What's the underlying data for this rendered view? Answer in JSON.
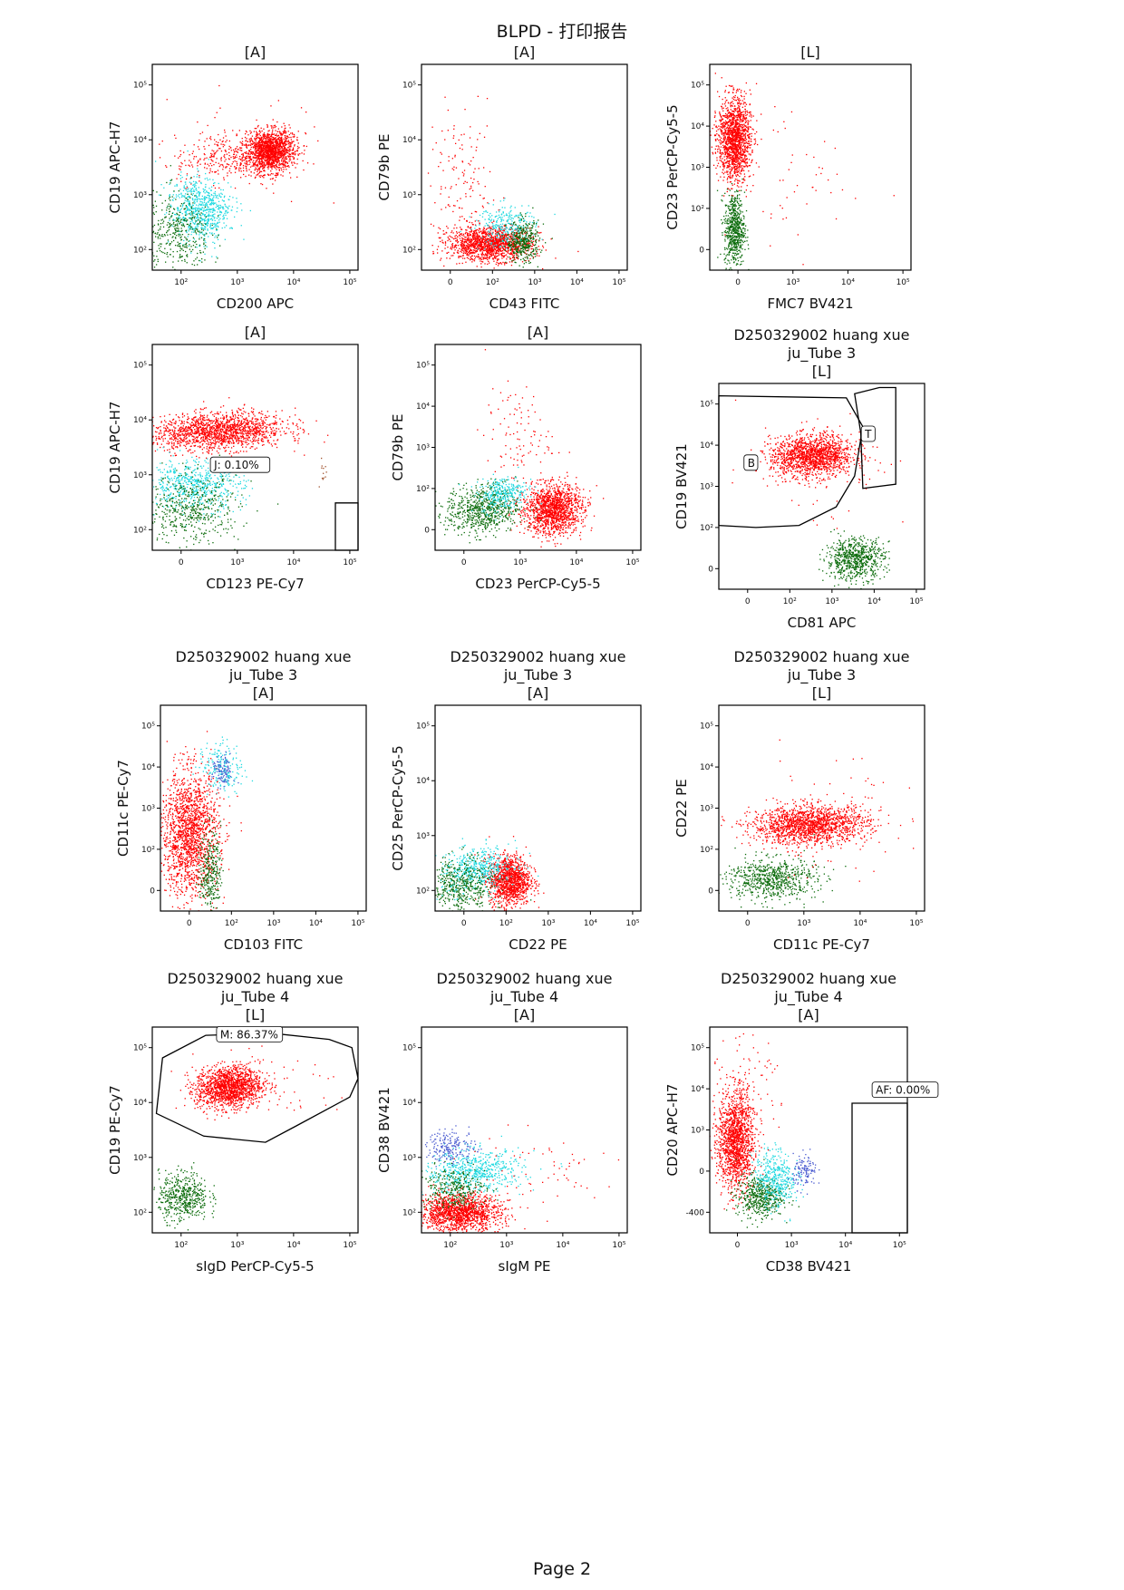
{
  "report": {
    "title": "BLPD - 打印报告",
    "page": "Page 2"
  },
  "colors": {
    "red": "#ff0000",
    "cyan": "#1fd9e0",
    "green": "#0a6b0a",
    "blue": "#4a5bd0",
    "brown": "#a0522d",
    "gate": "#000000"
  },
  "chart_data": [
    {
      "type": "scatter",
      "header": [
        "[A]"
      ],
      "xlabel": "CD200 APC",
      "ylabel": "CD19 APC-H7",
      "xticks": [
        "10²",
        "10³",
        "10⁴",
        "10⁵"
      ],
      "yticks": [
        "10²",
        "10³",
        "10⁴",
        "10⁵"
      ],
      "gates": [],
      "populations": [
        {
          "color": "red",
          "n": 1500,
          "cx": 0.57,
          "cy": 0.58,
          "sx": 0.06,
          "sy": 0.05,
          "rot": 0.25
        },
        {
          "color": "red",
          "n": 300,
          "cx": 0.35,
          "cy": 0.55,
          "sx": 0.12,
          "sy": 0.06,
          "rot": 0.1
        },
        {
          "color": "cyan",
          "n": 700,
          "cx": 0.23,
          "cy": 0.3,
          "sx": 0.07,
          "sy": 0.08,
          "rot": 0.3
        },
        {
          "color": "green",
          "n": 400,
          "cx": 0.12,
          "cy": 0.18,
          "sx": 0.08,
          "sy": 0.1,
          "rot": 0.0
        },
        {
          "color": "red",
          "n": 40,
          "cx": 0.5,
          "cy": 0.6,
          "sx": 0.25,
          "sy": 0.18,
          "rot": 0.0
        }
      ]
    },
    {
      "type": "scatter",
      "header": [
        "[A]"
      ],
      "xlabel": "CD43 FITC",
      "ylabel": "CD79b PE",
      "xticks": [
        "0",
        "10²",
        "10³",
        "10⁴",
        "10⁵"
      ],
      "yticks": [
        "10²",
        "10³",
        "10⁴",
        "10⁵"
      ],
      "gates": [],
      "populations": [
        {
          "color": "red",
          "n": 1500,
          "cx": 0.33,
          "cy": 0.13,
          "sx": 0.1,
          "sy": 0.04,
          "rot": 0.0
        },
        {
          "color": "green",
          "n": 400,
          "cx": 0.49,
          "cy": 0.14,
          "sx": 0.04,
          "sy": 0.05,
          "rot": 0.0
        },
        {
          "color": "cyan",
          "n": 250,
          "cx": 0.4,
          "cy": 0.22,
          "sx": 0.07,
          "sy": 0.05,
          "rot": 0.2
        },
        {
          "color": "red",
          "n": 150,
          "cx": 0.2,
          "cy": 0.4,
          "sx": 0.08,
          "sy": 0.18,
          "rot": 0.0
        }
      ]
    },
    {
      "type": "scatter",
      "header": [
        "[L]"
      ],
      "xlabel": "FMC7 BV421",
      "ylabel": "CD23 PerCP-Cy5-5",
      "xticks": [
        "0",
        "10³",
        "10⁴",
        "10⁵"
      ],
      "yticks": [
        "0",
        "10²",
        "10³",
        "10⁴",
        "10⁵"
      ],
      "gates": [],
      "populations": [
        {
          "color": "red",
          "n": 1500,
          "cx": 0.12,
          "cy": 0.64,
          "sx": 0.04,
          "sy": 0.1,
          "rot": 0.0
        },
        {
          "color": "green",
          "n": 600,
          "cx": 0.12,
          "cy": 0.2,
          "sx": 0.025,
          "sy": 0.09,
          "rot": 0.0
        },
        {
          "color": "red",
          "n": 60,
          "cx": 0.35,
          "cy": 0.45,
          "sx": 0.2,
          "sy": 0.2,
          "rot": 0.0
        }
      ]
    },
    {
      "type": "scatter",
      "header": [
        "[A]"
      ],
      "xlabel": "CD123 PE-Cy7",
      "ylabel": "CD19 APC-H7",
      "xticks": [
        "0",
        "10³",
        "10⁴",
        "10⁵"
      ],
      "yticks": [
        "10²",
        "10³",
        "10⁴",
        "10⁵"
      ],
      "gates": [
        {
          "label": "J: 0.10%",
          "label_x": 0.3,
          "label_y": 0.4
        }
      ],
      "populations": [
        {
          "color": "red",
          "n": 1600,
          "cx": 0.32,
          "cy": 0.58,
          "sx": 0.16,
          "sy": 0.045,
          "rot": 0.05
        },
        {
          "color": "cyan",
          "n": 600,
          "cx": 0.2,
          "cy": 0.32,
          "sx": 0.12,
          "sy": 0.06,
          "rot": 0.0
        },
        {
          "color": "green",
          "n": 500,
          "cx": 0.18,
          "cy": 0.2,
          "sx": 0.12,
          "sy": 0.08,
          "rot": 0.0
        },
        {
          "color": "brown",
          "n": 12,
          "cx": 0.83,
          "cy": 0.38,
          "sx": 0.01,
          "sy": 0.04,
          "rot": 0.0
        }
      ]
    },
    {
      "type": "scatter",
      "header": [
        "[A]"
      ],
      "xlabel": "CD23 PerCP-Cy5-5",
      "ylabel": "CD79b PE",
      "xticks": [
        "0",
        "10³",
        "10⁴",
        "10⁵"
      ],
      "yticks": [
        "0",
        "10²",
        "10³",
        "10⁴",
        "10⁵"
      ],
      "gates": [],
      "populations": [
        {
          "color": "red",
          "n": 1400,
          "cx": 0.57,
          "cy": 0.2,
          "sx": 0.07,
          "sy": 0.06,
          "rot": 0.2
        },
        {
          "color": "green",
          "n": 700,
          "cx": 0.23,
          "cy": 0.2,
          "sx": 0.09,
          "sy": 0.06,
          "rot": 0.1
        },
        {
          "color": "cyan",
          "n": 300,
          "cx": 0.33,
          "cy": 0.28,
          "sx": 0.06,
          "sy": 0.04,
          "rot": 0.2
        },
        {
          "color": "red",
          "n": 100,
          "cx": 0.4,
          "cy": 0.55,
          "sx": 0.08,
          "sy": 0.12,
          "rot": 0.0
        }
      ]
    },
    {
      "type": "scatter",
      "header": [
        "D250329002 huang xue",
        "ju_Tube 3",
        "[L]"
      ],
      "xlabel": "CD81 APC",
      "ylabel": "CD19 BV421",
      "xticks": [
        "0",
        "10²",
        "10³",
        "10⁴",
        "10⁵"
      ],
      "yticks": [
        "0",
        "10²",
        "10³",
        "10⁴",
        "10⁵"
      ],
      "gates": [
        {
          "label": "B",
          "label_x": 0.14,
          "label_y": 0.6
        },
        {
          "label": "T",
          "label_x": 0.71,
          "label_y": 0.74
        }
      ],
      "populations": [
        {
          "color": "red",
          "n": 1500,
          "cx": 0.45,
          "cy": 0.65,
          "sx": 0.1,
          "sy": 0.05,
          "rot": 0.05
        },
        {
          "color": "green",
          "n": 700,
          "cx": 0.66,
          "cy": 0.15,
          "sx": 0.07,
          "sy": 0.05,
          "rot": 0.1
        },
        {
          "color": "red",
          "n": 60,
          "cx": 0.5,
          "cy": 0.6,
          "sx": 0.2,
          "sy": 0.15,
          "rot": 0.0
        }
      ]
    },
    {
      "type": "scatter",
      "header": [
        "D250329002 huang xue",
        "ju_Tube 3",
        "[A]"
      ],
      "xlabel": "CD103 FITC",
      "ylabel": "CD11c PE-Cy7",
      "xticks": [
        "0",
        "10²",
        "10³",
        "10⁴",
        "10⁵"
      ],
      "yticks": [
        "0",
        "10²",
        "10³",
        "10⁴",
        "10⁵"
      ],
      "gates": [],
      "populations": [
        {
          "color": "red",
          "n": 1700,
          "cx": 0.14,
          "cy": 0.38,
          "sx": 0.07,
          "sy": 0.15,
          "rot": 0.0
        },
        {
          "color": "green",
          "n": 300,
          "cx": 0.24,
          "cy": 0.2,
          "sx": 0.025,
          "sy": 0.1,
          "rot": 0.0
        },
        {
          "color": "cyan",
          "n": 200,
          "cx": 0.3,
          "cy": 0.7,
          "sx": 0.05,
          "sy": 0.06,
          "rot": 0.3
        },
        {
          "color": "blue",
          "n": 100,
          "cx": 0.3,
          "cy": 0.68,
          "sx": 0.025,
          "sy": 0.04,
          "rot": 0.0
        }
      ]
    },
    {
      "type": "scatter",
      "header": [
        "D250329002 huang xue",
        "ju_Tube 3",
        "[A]"
      ],
      "xlabel": "CD22 PE",
      "ylabel": "CD25 PerCP-Cy5-5",
      "xticks": [
        "0",
        "10²",
        "10³",
        "10⁴",
        "10⁵"
      ],
      "yticks": [
        "10²",
        "10³",
        "10⁴",
        "10⁵"
      ],
      "gates": [],
      "populations": [
        {
          "color": "red",
          "n": 1200,
          "cx": 0.36,
          "cy": 0.15,
          "sx": 0.05,
          "sy": 0.06,
          "rot": 0.0
        },
        {
          "color": "cyan",
          "n": 500,
          "cx": 0.2,
          "cy": 0.2,
          "sx": 0.09,
          "sy": 0.05,
          "rot": 0.2
        },
        {
          "color": "green",
          "n": 500,
          "cx": 0.12,
          "cy": 0.12,
          "sx": 0.08,
          "sy": 0.07,
          "rot": 0.0
        }
      ]
    },
    {
      "type": "scatter",
      "header": [
        "D250329002 huang xue",
        "ju_Tube 3",
        "[L]"
      ],
      "xlabel": "CD11c PE-Cy7",
      "ylabel": "CD22 PE",
      "xticks": [
        "0",
        "10³",
        "10⁴",
        "10⁵"
      ],
      "yticks": [
        "0",
        "10²",
        "10³",
        "10⁴",
        "10⁵"
      ],
      "gates": [],
      "populations": [
        {
          "color": "red",
          "n": 1600,
          "cx": 0.44,
          "cy": 0.42,
          "sx": 0.14,
          "sy": 0.045,
          "rot": 0.03
        },
        {
          "color": "green",
          "n": 700,
          "cx": 0.25,
          "cy": 0.16,
          "sx": 0.11,
          "sy": 0.05,
          "rot": 0.0
        },
        {
          "color": "red",
          "n": 80,
          "cx": 0.55,
          "cy": 0.45,
          "sx": 0.25,
          "sy": 0.15,
          "rot": 0.0
        }
      ]
    },
    {
      "type": "scatter",
      "header": [
        "D250329002 huang xue",
        "ju_Tube 4",
        "[L]"
      ],
      "xlabel": "sIgD PerCP-Cy5-5",
      "ylabel": "CD19 PE-Cy7",
      "xticks": [
        "10²",
        "10³",
        "10⁴",
        "10⁵"
      ],
      "yticks": [
        "10²",
        "10³",
        "10⁴",
        "10⁵"
      ],
      "gates": [
        {
          "label": "M: 86.37%",
          "label_x": 0.33,
          "label_y": 0.95
        }
      ],
      "populations": [
        {
          "color": "red",
          "n": 1500,
          "cx": 0.37,
          "cy": 0.71,
          "sx": 0.08,
          "sy": 0.05,
          "rot": 0.1
        },
        {
          "color": "green",
          "n": 500,
          "cx": 0.15,
          "cy": 0.18,
          "sx": 0.06,
          "sy": 0.06,
          "rot": 0.0
        },
        {
          "color": "red",
          "n": 60,
          "cx": 0.6,
          "cy": 0.7,
          "sx": 0.2,
          "sy": 0.08,
          "rot": 0.0
        }
      ]
    },
    {
      "type": "scatter",
      "header": [
        "D250329002 huang xue",
        "ju_Tube 4",
        "[A]"
      ],
      "xlabel": "sIgM PE",
      "ylabel": "CD38 BV421",
      "xticks": [
        "10²",
        "10³",
        "10⁴",
        "10⁵"
      ],
      "yticks": [
        "10²",
        "10³",
        "10⁴",
        "10⁵"
      ],
      "gates": [],
      "populations": [
        {
          "color": "red",
          "n": 1500,
          "cx": 0.18,
          "cy": 0.1,
          "sx": 0.1,
          "sy": 0.045,
          "rot": 0.0
        },
        {
          "color": "cyan",
          "n": 600,
          "cx": 0.25,
          "cy": 0.3,
          "sx": 0.12,
          "sy": 0.05,
          "rot": 0.05
        },
        {
          "color": "blue",
          "n": 200,
          "cx": 0.14,
          "cy": 0.42,
          "sx": 0.06,
          "sy": 0.04,
          "rot": 0.0
        },
        {
          "color": "green",
          "n": 300,
          "cx": 0.15,
          "cy": 0.22,
          "sx": 0.08,
          "sy": 0.05,
          "rot": 0.0
        },
        {
          "color": "red",
          "n": 60,
          "cx": 0.55,
          "cy": 0.3,
          "sx": 0.2,
          "sy": 0.1,
          "rot": 0.0
        }
      ]
    },
    {
      "type": "scatter",
      "header": [
        "D250329002 huang xue",
        "ju_Tube 4",
        "[A]"
      ],
      "xlabel": "CD38 BV421",
      "ylabel": "CD20 APC-H7",
      "xticks": [
        "0",
        "10³",
        "10⁴",
        "10⁵"
      ],
      "yticks": [
        "-400",
        "0",
        "10³",
        "10⁴",
        "10⁵"
      ],
      "gates": [
        {
          "label": "AF: 0.00%",
          "label_x": 0.84,
          "label_y": 0.68
        }
      ],
      "populations": [
        {
          "color": "red",
          "n": 1500,
          "cx": 0.13,
          "cy": 0.45,
          "sx": 0.045,
          "sy": 0.12,
          "rot": 0.0
        },
        {
          "color": "green",
          "n": 500,
          "cx": 0.25,
          "cy": 0.18,
          "sx": 0.06,
          "sy": 0.05,
          "rot": 0.0
        },
        {
          "color": "cyan",
          "n": 400,
          "cx": 0.33,
          "cy": 0.27,
          "sx": 0.05,
          "sy": 0.07,
          "rot": 0.2
        },
        {
          "color": "blue",
          "n": 120,
          "cx": 0.48,
          "cy": 0.3,
          "sx": 0.03,
          "sy": 0.04,
          "rot": 0.0
        },
        {
          "color": "red",
          "n": 80,
          "cx": 0.2,
          "cy": 0.7,
          "sx": 0.1,
          "sy": 0.15,
          "rot": 0.0
        }
      ]
    }
  ]
}
